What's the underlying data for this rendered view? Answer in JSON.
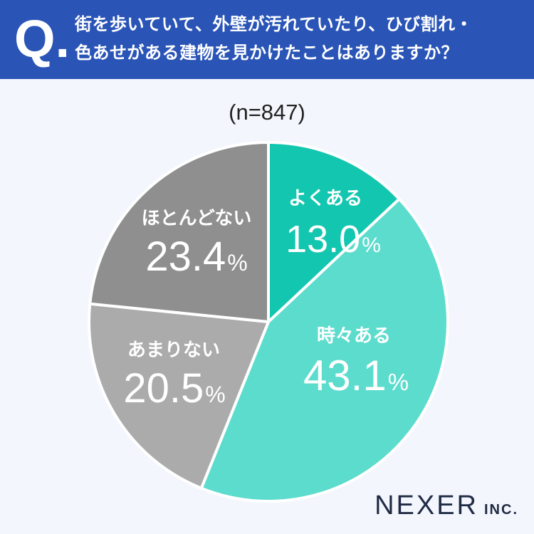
{
  "question": {
    "mark": "Q.",
    "line1": "街を歩いていて、外壁が汚れていたり、ひび割れ・",
    "line2": "色あせがある建物を見かけたことはありますか？"
  },
  "sample_size": "(n=847)",
  "brand": {
    "name": "NEXER",
    "suffix": "INC."
  },
  "chart_data": {
    "type": "pie",
    "start": "12 o'clock",
    "direction": "clockwise",
    "unit": "%",
    "slices": [
      {
        "label": "よくある",
        "value": 13.0,
        "value_text": "13.0",
        "color": "#13c6b0"
      },
      {
        "label": "時々ある",
        "value": 43.1,
        "value_text": "43.1",
        "color": "#5cdccd"
      },
      {
        "label": "あまりない",
        "value": 20.5,
        "value_text": "20.5",
        "color": "#ababab"
      },
      {
        "label": "ほとんどない",
        "value": 23.4,
        "value_text": "23.4",
        "color": "#8f8f8f"
      }
    ]
  },
  "colors": {
    "header": "#2a55b7",
    "background": "#f3f6fc",
    "label_text": "#ffffff"
  }
}
